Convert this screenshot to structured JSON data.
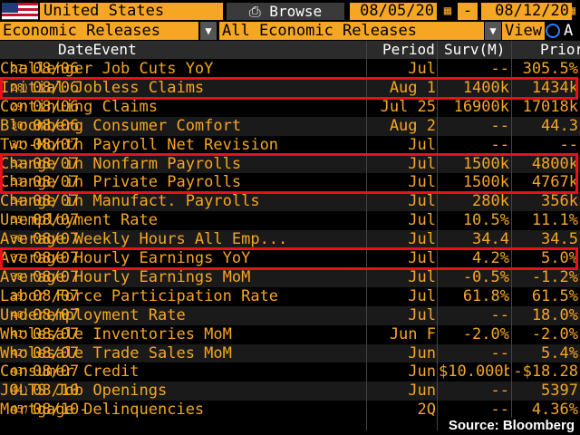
{
  "toolbar": {
    "country": "United States",
    "browse_label": "⎙ Browse",
    "start_date": "08/05/20",
    "end_date": "08/12/20",
    "date_sep": "-"
  },
  "filters": {
    "category": "Economic Releases",
    "releases": "All Economic Releases",
    "view_label": "View",
    "radio_label": "A"
  },
  "table": {
    "headers": {
      "date_event": "DateEvent",
      "period": "Period",
      "survey": "Surv(M)",
      "prior": "Prior"
    },
    "rows": [
      {
        "num": "27)",
        "date": "08/06",
        "event": "Challenger Job Cuts YoY",
        "period": "Jul",
        "survey": "--",
        "prior": "305.5%"
      },
      {
        "num": "28)",
        "date": "08/06",
        "event": "Initial Jobless Claims",
        "period": "Aug 1",
        "survey": "1400k",
        "prior": "1434k"
      },
      {
        "num": "29)",
        "date": "08/06",
        "event": "Continuing Claims",
        "period": "Jul 25",
        "survey": "16900k",
        "prior": "17018k"
      },
      {
        "num": "30)",
        "date": "08/06",
        "event": "Bloomberg Consumer Comfort",
        "period": "Aug 2",
        "survey": "--",
        "prior": "44.3"
      },
      {
        "num": "31)",
        "date": "08/07",
        "event": "Two-Month Payroll Net Revision",
        "period": "Jul",
        "survey": "--",
        "prior": "--"
      },
      {
        "num": "32)",
        "date": "08/07",
        "event": "Change in Nonfarm Payrolls",
        "period": "Jul",
        "survey": "1500k",
        "prior": "4800k"
      },
      {
        "num": "33)",
        "date": "08/07",
        "event": "Change in Private Payrolls",
        "period": "Jul",
        "survey": "1500k",
        "prior": "4767k"
      },
      {
        "num": "34)",
        "date": "08/07",
        "event": "Change in Manufact. Payrolls",
        "period": "Jul",
        "survey": "280k",
        "prior": "356k"
      },
      {
        "num": "35)",
        "date": "08/07",
        "event": "Unemployment Rate",
        "period": "Jul",
        "survey": "10.5%",
        "prior": "11.1%"
      },
      {
        "num": "36)",
        "date": "08/07",
        "event": "Average Weekly Hours All Emp...",
        "period": "Jul",
        "survey": "34.4",
        "prior": "34.5"
      },
      {
        "num": "37)",
        "date": "08/07",
        "event": "Average Hourly Earnings YoY",
        "period": "Jul",
        "survey": "4.2%",
        "prior": "5.0%"
      },
      {
        "num": "38)",
        "date": "08/07",
        "event": "Average Hourly Earnings MoM",
        "period": "Jul",
        "survey": "-0.5%",
        "prior": "-1.2%"
      },
      {
        "num": "39)",
        "date": "08/07",
        "event": "Labor Force Participation Rate",
        "period": "Jul",
        "survey": "61.8%",
        "prior": "61.5%"
      },
      {
        "num": "40)",
        "date": "08/07",
        "event": "Underemployment Rate",
        "period": "Jul",
        "survey": "--",
        "prior": "18.0%"
      },
      {
        "num": "41)",
        "date": "08/07",
        "event": "Wholesale Inventories MoM",
        "period": "Jun F",
        "survey": "-2.0%",
        "prior": "-2.0%"
      },
      {
        "num": "42)",
        "date": "08/07",
        "event": "Wholesale Trade Sales MoM",
        "period": "Jun",
        "survey": "--",
        "prior": "5.4%"
      },
      {
        "num": "43)",
        "date": "08/07",
        "event": "Consumer Credit",
        "period": "Jun",
        "survey": "$10.000b",
        "prior": "-$18.28"
      },
      {
        "num": "44)",
        "date": "08/10",
        "event": "JOLTS Job Openings",
        "period": "Jun",
        "survey": "--",
        "prior": "5397"
      },
      {
        "num": "45)",
        "date": "08/10-",
        "event": "Mortgage Delinquencies",
        "period": "2Q",
        "survey": "--",
        "prior": "4.36%"
      }
    ]
  },
  "highlighted_rows": [
    "28)",
    "32)",
    "33)",
    "37)"
  ],
  "source": "Source: Bloomberg",
  "colors": {
    "accent": "#f5a623",
    "highlight": "#e8101a",
    "background": "#000000"
  }
}
